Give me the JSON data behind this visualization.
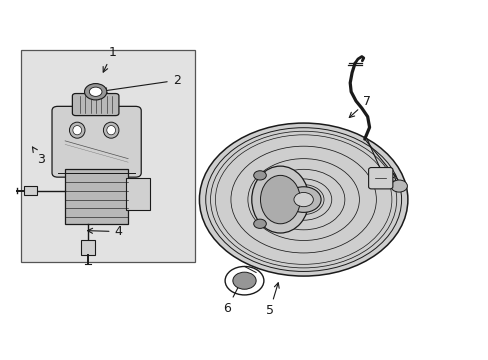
{
  "background_color": "#ffffff",
  "line_color": "#1a1a1a",
  "label_color": "#1a1a1a",
  "fig_width": 4.89,
  "fig_height": 3.6,
  "dpi": 100,
  "box_face": "#e2e2e2",
  "gray1": "#b8b8b8",
  "gray2": "#d0d0d0",
  "gray3": "#969696"
}
